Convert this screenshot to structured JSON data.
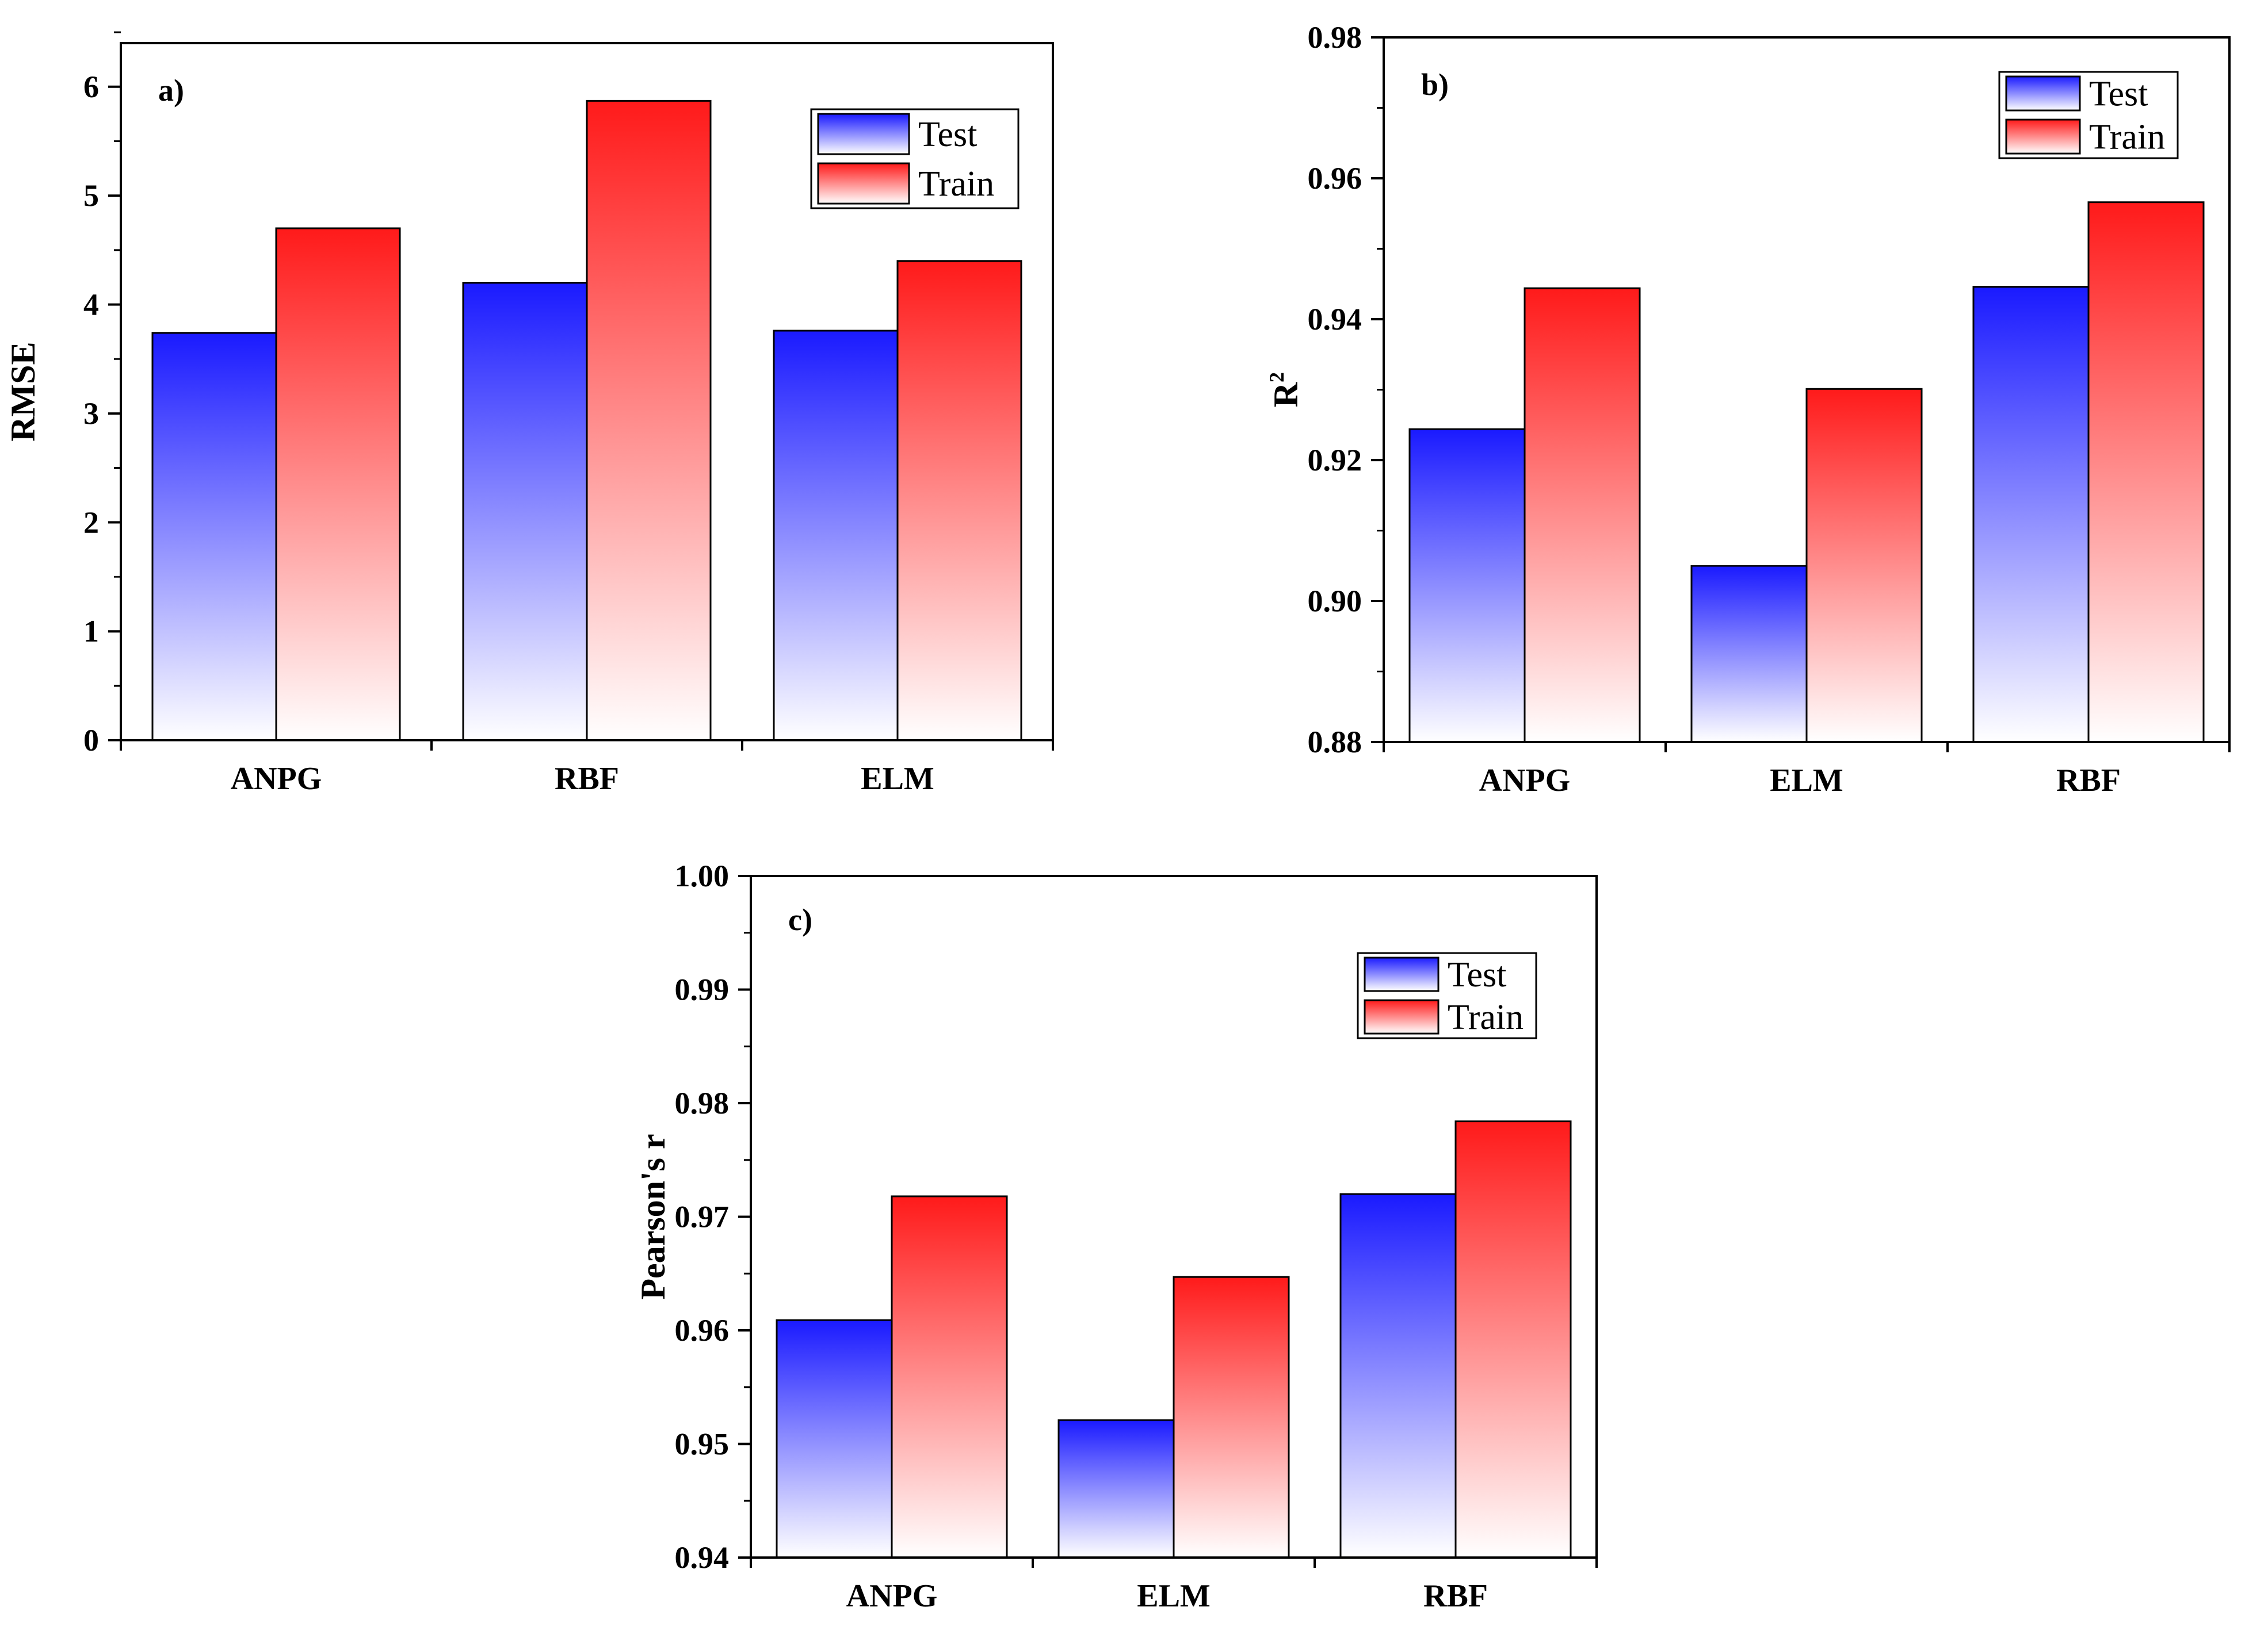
{
  "colors": {
    "test_top": "#1a1aff",
    "test_bottom": "#ffffff",
    "train_top": "#ff1a1a",
    "train_bottom": "#ffffff",
    "axis": "#000000"
  },
  "legend": {
    "test": "Test",
    "train": "Train",
    "placement": "top-right"
  },
  "chart_data": [
    {
      "id": "a",
      "type": "bar",
      "panel_label": "a)",
      "title": "",
      "xlabel": "",
      "ylabel": "RMSE",
      "ylabel_sup": "",
      "categories": [
        "ANPG",
        "RBF",
        "ELM"
      ],
      "series": [
        {
          "name": "Test",
          "values": [
            3.74,
            4.2,
            3.76
          ]
        },
        {
          "name": "Train",
          "values": [
            4.7,
            5.87,
            4.4
          ]
        }
      ],
      "ylim": [
        0,
        6.4
      ],
      "yticks": [
        0,
        1,
        2,
        3,
        4,
        5,
        6
      ],
      "ytick_labels": [
        "0",
        "1",
        "2",
        "3",
        "4",
        "5",
        "6"
      ],
      "minor_step": 0.5,
      "grid": false
    },
    {
      "id": "b",
      "type": "bar",
      "panel_label": "b)",
      "title": "",
      "xlabel": "",
      "ylabel": "R",
      "ylabel_sup": "2",
      "categories": [
        "ANPG",
        "ELM",
        "RBF"
      ],
      "series": [
        {
          "name": "Test",
          "values": [
            0.9244,
            0.905,
            0.9446
          ]
        },
        {
          "name": "Train",
          "values": [
            0.9444,
            0.9301,
            0.9566
          ]
        }
      ],
      "ylim": [
        0.88,
        0.98
      ],
      "yticks": [
        0.88,
        0.9,
        0.92,
        0.94,
        0.96,
        0.98
      ],
      "ytick_labels": [
        "0.88",
        "0.90",
        "0.92",
        "0.94",
        "0.96",
        "0.98"
      ],
      "minor_step": 0.01,
      "grid": false
    },
    {
      "id": "c",
      "type": "bar",
      "panel_label": "c)",
      "title": "",
      "xlabel": "",
      "ylabel": "Pearson's r",
      "ylabel_sup": "",
      "categories": [
        "ANPG",
        "ELM",
        "RBF"
      ],
      "series": [
        {
          "name": "Test",
          "values": [
            0.9609,
            0.9521,
            0.972
          ]
        },
        {
          "name": "Train",
          "values": [
            0.9718,
            0.9647,
            0.9784
          ]
        }
      ],
      "ylim": [
        0.94,
        1.0
      ],
      "yticks": [
        0.94,
        0.95,
        0.96,
        0.97,
        0.98,
        0.99,
        1.0
      ],
      "ytick_labels": [
        "0.94",
        "0.95",
        "0.96",
        "0.97",
        "0.98",
        "0.99",
        "1.00"
      ],
      "minor_step": 0.005,
      "grid": false
    }
  ]
}
